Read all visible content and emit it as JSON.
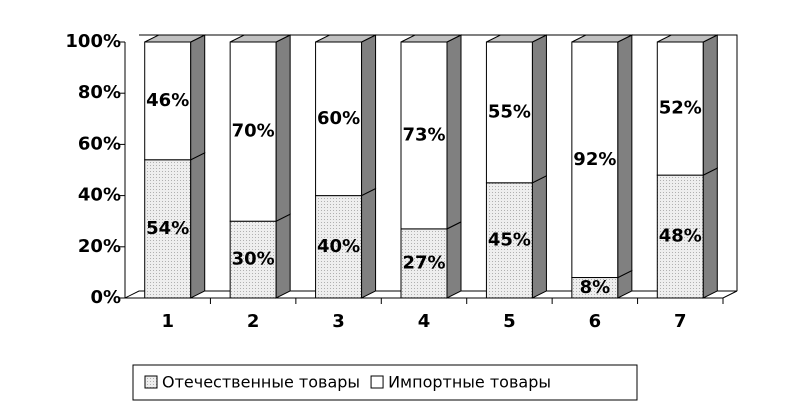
{
  "chart_data": {
    "type": "bar",
    "stacked": true,
    "categories": [
      "1",
      "2",
      "3",
      "4",
      "5",
      "6",
      "7"
    ],
    "series": [
      {
        "name": "Отечественные товары",
        "color": "#e6e6e6",
        "values": [
          54,
          30,
          40,
          27,
          45,
          8,
          48
        ],
        "value_labels": [
          "54%",
          "30%",
          "40%",
          "27%",
          "45%",
          "8%",
          "48%"
        ]
      },
      {
        "name": "Импортные товары",
        "color": "#ffffff",
        "values": [
          46,
          70,
          60,
          73,
          55,
          92,
          52
        ],
        "value_labels": [
          "46%",
          "70%",
          "60%",
          "73%",
          "55%",
          "92%",
          "52%"
        ]
      }
    ],
    "ylim": [
      0,
      100
    ],
    "yticks": [
      {
        "value": 0,
        "label": "0%"
      },
      {
        "value": 20,
        "label": "20%"
      },
      {
        "value": 40,
        "label": "40%"
      },
      {
        "value": 60,
        "label": "60%"
      },
      {
        "value": 80,
        "label": "80%"
      },
      {
        "value": 100,
        "label": "100%"
      }
    ],
    "legend": "bottom"
  }
}
